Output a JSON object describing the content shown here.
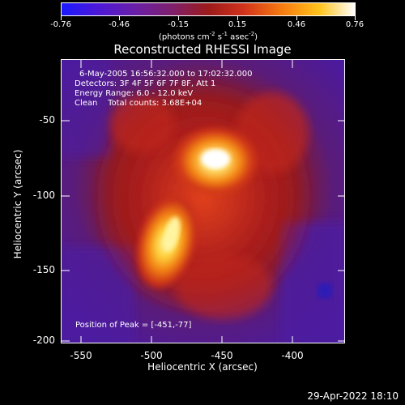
{
  "colorbar": {
    "ticks": [
      "-0.76",
      "-0.46",
      "-0.15",
      "0.15",
      "0.46",
      "0.76"
    ],
    "units_prefix": "(photons cm",
    "units_sup1": "-2",
    "units_mid": " s",
    "units_sup2": "-1",
    "units_mid2": " asec",
    "units_sup3": "-2",
    "units_suffix": ")"
  },
  "title": "Reconstructed RHESSI Image",
  "info": {
    "time_range": "6-May-2005 16:56:32.000 to 17:02:32.000",
    "detectors": "Detectors: 3F 4F 5F 6F 7F 8F, Att 1",
    "energy": "Energy Range: 6.0 - 12.0 keV",
    "clean": "Clean    Total counts: 3.68E+04"
  },
  "peak": "Position of Peak = [-451,-77]",
  "axes": {
    "xlabel": "Heliocentric X (arcsec)",
    "ylabel": "Heliocentric Y (arcsec)",
    "xticks": [
      "-550",
      "-500",
      "-450",
      "-400"
    ],
    "yticks": [
      "-50",
      "-100",
      "-150",
      "-200"
    ]
  },
  "timestamp": "29-Apr-2022 18:10",
  "colors": {
    "background": "#000000",
    "text": "#ffffff"
  }
}
